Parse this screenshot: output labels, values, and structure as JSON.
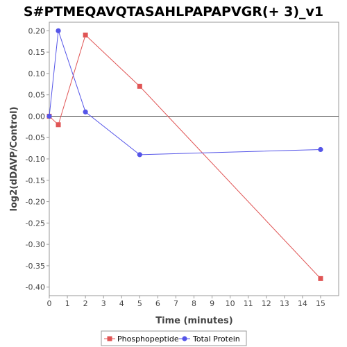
{
  "chart_data": {
    "type": "line",
    "title": "S#PTMEQAVQTASAHLPAPAPVGR(+ 3)_v1",
    "xlabel": "Time (minutes)",
    "ylabel": "log2(dDAVP/Control)",
    "xlim": [
      0,
      16
    ],
    "ylim": [
      -0.42,
      0.22
    ],
    "x_ticks": [
      0,
      1,
      2,
      3,
      4,
      5,
      6,
      7,
      8,
      9,
      10,
      11,
      12,
      13,
      14,
      15
    ],
    "y_ticks": [
      -0.4,
      -0.35,
      -0.3,
      -0.25,
      -0.2,
      -0.15,
      -0.1,
      -0.05,
      0.0,
      0.05,
      0.1,
      0.15,
      0.2
    ],
    "grid": false,
    "zero_line": true,
    "legend_position": "bottom",
    "series": [
      {
        "name": "Phosphopeptide",
        "color": "#e05555",
        "marker": "square",
        "x": [
          0,
          0.5,
          2,
          5,
          15
        ],
        "y": [
          0.0,
          -0.02,
          0.19,
          0.07,
          -0.38
        ]
      },
      {
        "name": "Total Protein",
        "color": "#5555e8",
        "marker": "circle",
        "x": [
          0,
          0.5,
          2,
          5,
          15
        ],
        "y": [
          0.0,
          0.2,
          0.01,
          -0.09,
          -0.078
        ]
      }
    ]
  }
}
